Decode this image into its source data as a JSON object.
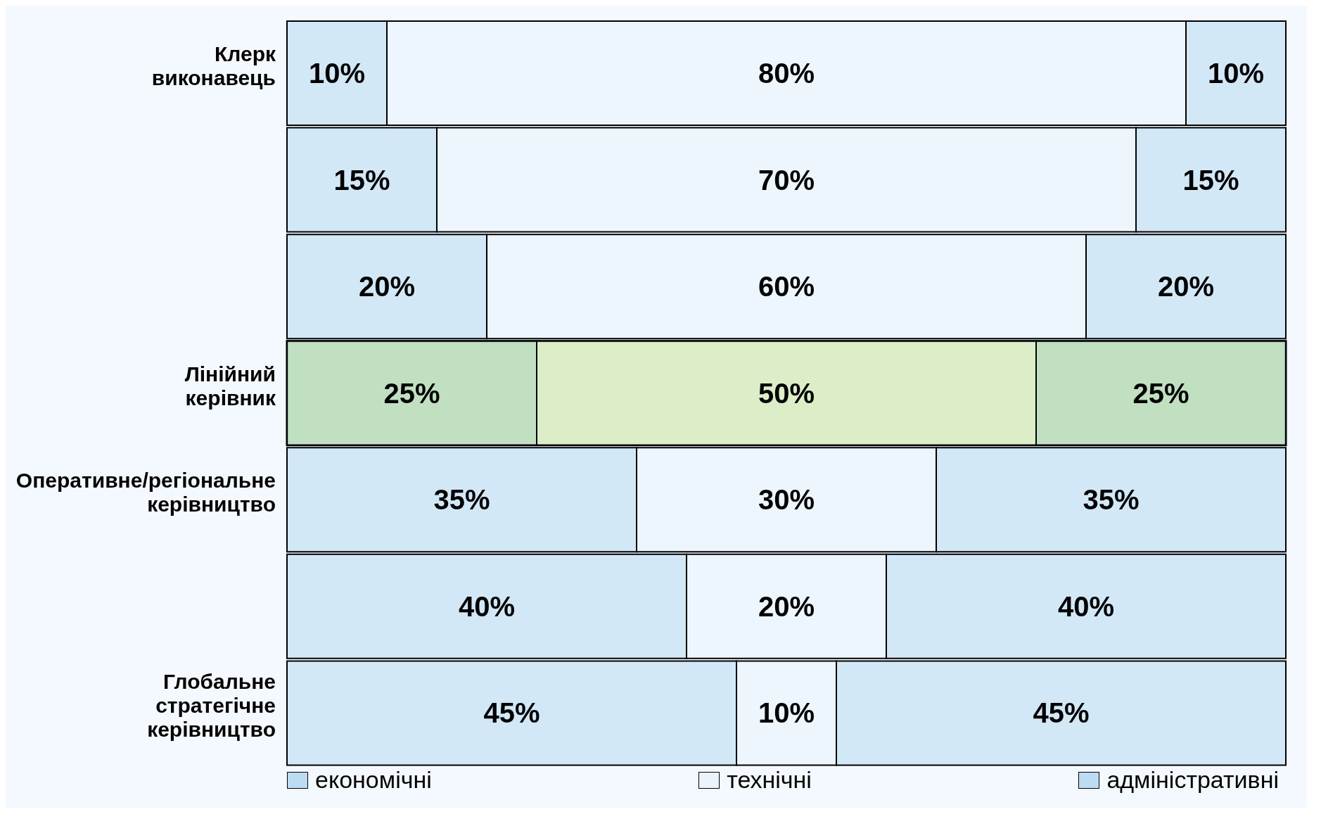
{
  "chart_data": {
    "type": "bar",
    "orientation": "horizontal",
    "stacked": true,
    "categories": [
      "Клерк виконавець",
      null,
      null,
      "Лінійний керівник",
      "Оперативне/регіональне керівництво",
      null,
      "Глобальне стратегічне керівництво"
    ],
    "series": [
      {
        "name": "економічні",
        "color": "#bcdcf2",
        "values": [
          10,
          15,
          20,
          25,
          35,
          40,
          45
        ],
        "value_labels": [
          "10%",
          "15%",
          "20%",
          "25%",
          "35%",
          "40%",
          "45%"
        ]
      },
      {
        "name": "технічні",
        "color": "#eaf4fb",
        "values": [
          80,
          70,
          60,
          50,
          30,
          20,
          10
        ],
        "value_labels": [
          "80%",
          "70%",
          "60%",
          "50%",
          "30%",
          "20%",
          "10%"
        ]
      },
      {
        "name": "адміністративні",
        "color": "#bcdcf2",
        "values": [
          10,
          15,
          20,
          25,
          35,
          40,
          45
        ],
        "value_labels": [
          "10%",
          "15%",
          "20%",
          "25%",
          "35%",
          "40%",
          "45%"
        ]
      }
    ],
    "bands": [
      {
        "axis": "y",
        "from": "Лінійний керівник",
        "to": "Лінійний керівник",
        "color": "#c8e67a"
      }
    ],
    "legend": "bottom",
    "tick_labels": "y"
  }
}
